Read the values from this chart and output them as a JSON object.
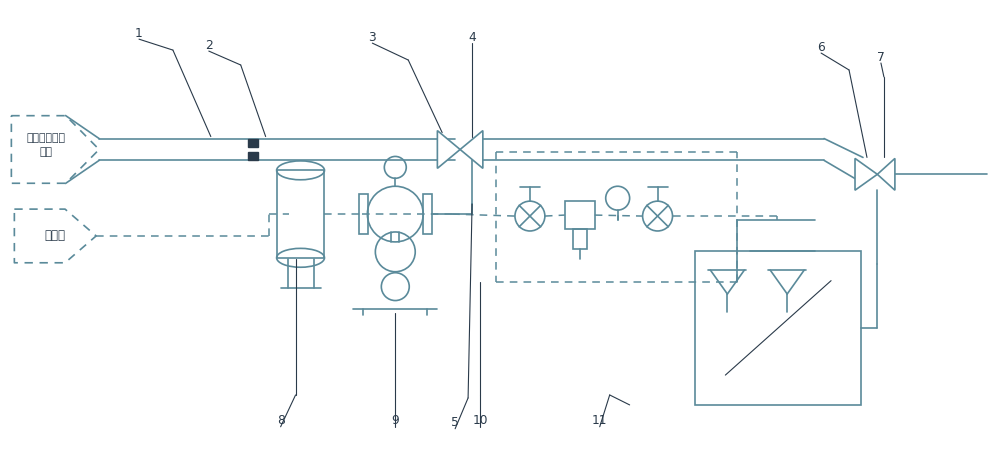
{
  "bg_color": "#ffffff",
  "line_color": "#5a8a9a",
  "dark_color": "#2a3a4a",
  "gas_text": "含散状物料的\n气体",
  "water_text": "消防水"
}
